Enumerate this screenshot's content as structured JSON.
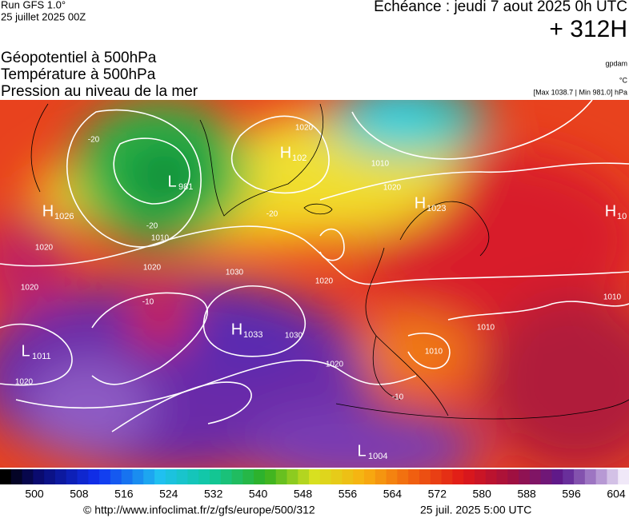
{
  "header": {
    "run": "Run GFS 1.0°",
    "date": "25 juillet 2025 00Z",
    "valid": "Echéance : jeudi 7 aout 2025 0h UTC",
    "lead": "+ 312H"
  },
  "fields": [
    "Géopotentiel à 500hPa",
    "Température à 500hPa",
    "Pression au niveau de la mer"
  ],
  "units": {
    "geopotential": "gpdam",
    "temperature": "°C",
    "pressure": "[Max 1038.7 | Min 981.0] hPa"
  },
  "centers": [
    {
      "type": "H",
      "value": "1026"
    },
    {
      "type": "L",
      "value": "981"
    },
    {
      "type": "H",
      "value": "102"
    },
    {
      "type": "H",
      "value": "1023"
    },
    {
      "type": "H",
      "value": "10"
    },
    {
      "type": "H",
      "value": "1033"
    },
    {
      "type": "L",
      "value": "1011"
    },
    {
      "type": "L",
      "value": "1004"
    }
  ],
  "isolines": [
    "1020",
    "1010",
    "1020",
    "1020",
    "1030",
    "1020",
    "1020",
    "1030",
    "1020",
    "1020",
    "1010",
    "1010",
    "1010",
    "1010",
    "1020",
    "-20",
    "-20",
    "-20",
    "-10",
    "-10"
  ],
  "scale": {
    "labels": [
      "500",
      "508",
      "516",
      "524",
      "532",
      "540",
      "548",
      "556",
      "564",
      "572",
      "580",
      "588",
      "596",
      "604"
    ]
  },
  "footer": {
    "url": "© http://www.infoclimat.fr/z/gfs/europe/500/312",
    "time": "25 juil. 2025  5:00 UTC"
  }
}
